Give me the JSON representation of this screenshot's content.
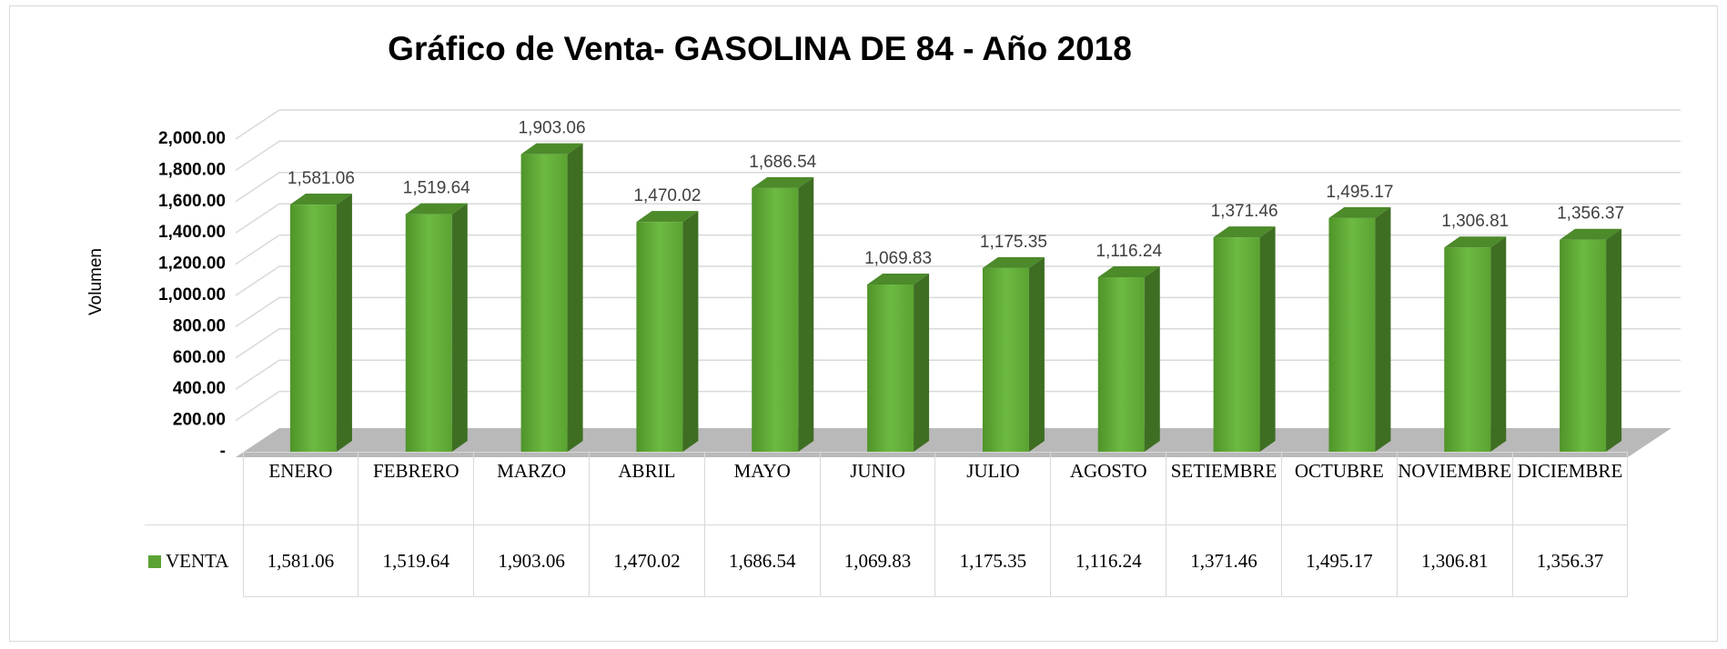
{
  "chart_data": {
    "type": "bar",
    "title": "Gráfico de Venta- GASOLINA DE 84 - Año 2018",
    "y_label": "Volumen",
    "categories": [
      "ENERO",
      "FEBRERO",
      "MARZO",
      "ABRIL",
      "MAYO",
      "JUNIO",
      "JULIO",
      "AGOSTO",
      "SETIEMBRE",
      "OCTUBRE",
      "NOVIEMBRE",
      "DICIEMBRE"
    ],
    "series": [
      {
        "name": "VENTA",
        "color": "#5aa332",
        "values": [
          1581.06,
          1519.64,
          1903.06,
          1470.02,
          1686.54,
          1069.83,
          1175.35,
          1116.24,
          1371.46,
          1495.17,
          1306.81,
          1356.37
        ],
        "value_labels": [
          "1,581.06",
          "1,519.64",
          "1,903.06",
          "1,470.02",
          "1,686.54",
          "1,069.83",
          "1,175.35",
          "1,116.24",
          "1,371.46",
          "1,495.17",
          "1,306.81",
          "1,356.37"
        ]
      }
    ],
    "ylim": [
      0,
      2000
    ],
    "yticks": [
      {
        "value": 0,
        "label": "-"
      },
      {
        "value": 200,
        "label": "200.00"
      },
      {
        "value": 400,
        "label": "400.00"
      },
      {
        "value": 600,
        "label": "600.00"
      },
      {
        "value": 800,
        "label": "800.00"
      },
      {
        "value": 1000,
        "label": "1,000.00"
      },
      {
        "value": 1200,
        "label": "1,200.00"
      },
      {
        "value": 1400,
        "label": "1,400.00"
      },
      {
        "value": 1600,
        "label": "1,600.00"
      },
      {
        "value": 1800,
        "label": "1,800.00"
      },
      {
        "value": 2000,
        "label": "2,000.00"
      }
    ],
    "grid": true,
    "data_table": true
  }
}
